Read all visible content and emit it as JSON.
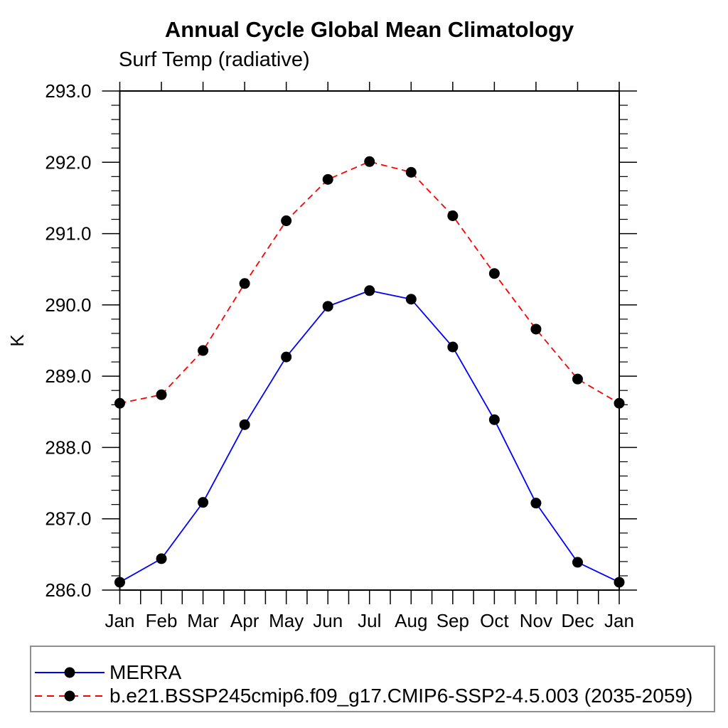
{
  "figure": {
    "title": "Annual Cycle Global Mean Climatology",
    "subtitle": "Surf Temp (radiative)",
    "ylabel": "K"
  },
  "chart_data": {
    "type": "line",
    "title": "Annual Cycle Global Mean Climatology",
    "subtitle": "Surf Temp (radiative)",
    "xlabel": "",
    "ylabel": "K",
    "categories": [
      "Jan",
      "Feb",
      "Mar",
      "Apr",
      "May",
      "Jun",
      "Jul",
      "Aug",
      "Sep",
      "Oct",
      "Nov",
      "Dec",
      "Jan"
    ],
    "series": [
      {
        "name": "MERRA",
        "color": "#0000ff",
        "line_style": "solid",
        "marker": "circle",
        "marker_color": "#000000",
        "values": [
          286.11,
          286.44,
          287.23,
          288.32,
          289.27,
          289.98,
          290.2,
          290.08,
          289.41,
          288.39,
          287.22,
          286.39,
          286.11
        ]
      },
      {
        "name": "b.e21.BSSP245cmip6.f09_g17.CMIP6-SSP2-4.5.003 (2035-2059)",
        "color": "#ff0000",
        "line_style": "dashed",
        "marker": "circle",
        "marker_color": "#000000",
        "values": [
          288.62,
          288.74,
          289.36,
          290.3,
          291.18,
          291.76,
          292.01,
          291.86,
          291.25,
          290.44,
          289.66,
          288.96,
          288.62
        ]
      }
    ],
    "ylim": [
      286.0,
      293.0
    ],
    "ytick_step": 1.0,
    "yminor_step": 0.2,
    "ytick_decimals": 1,
    "x_minor_per_major": 1,
    "grid": false,
    "legend_position": "bottom-left",
    "frame_color": "#000000"
  }
}
